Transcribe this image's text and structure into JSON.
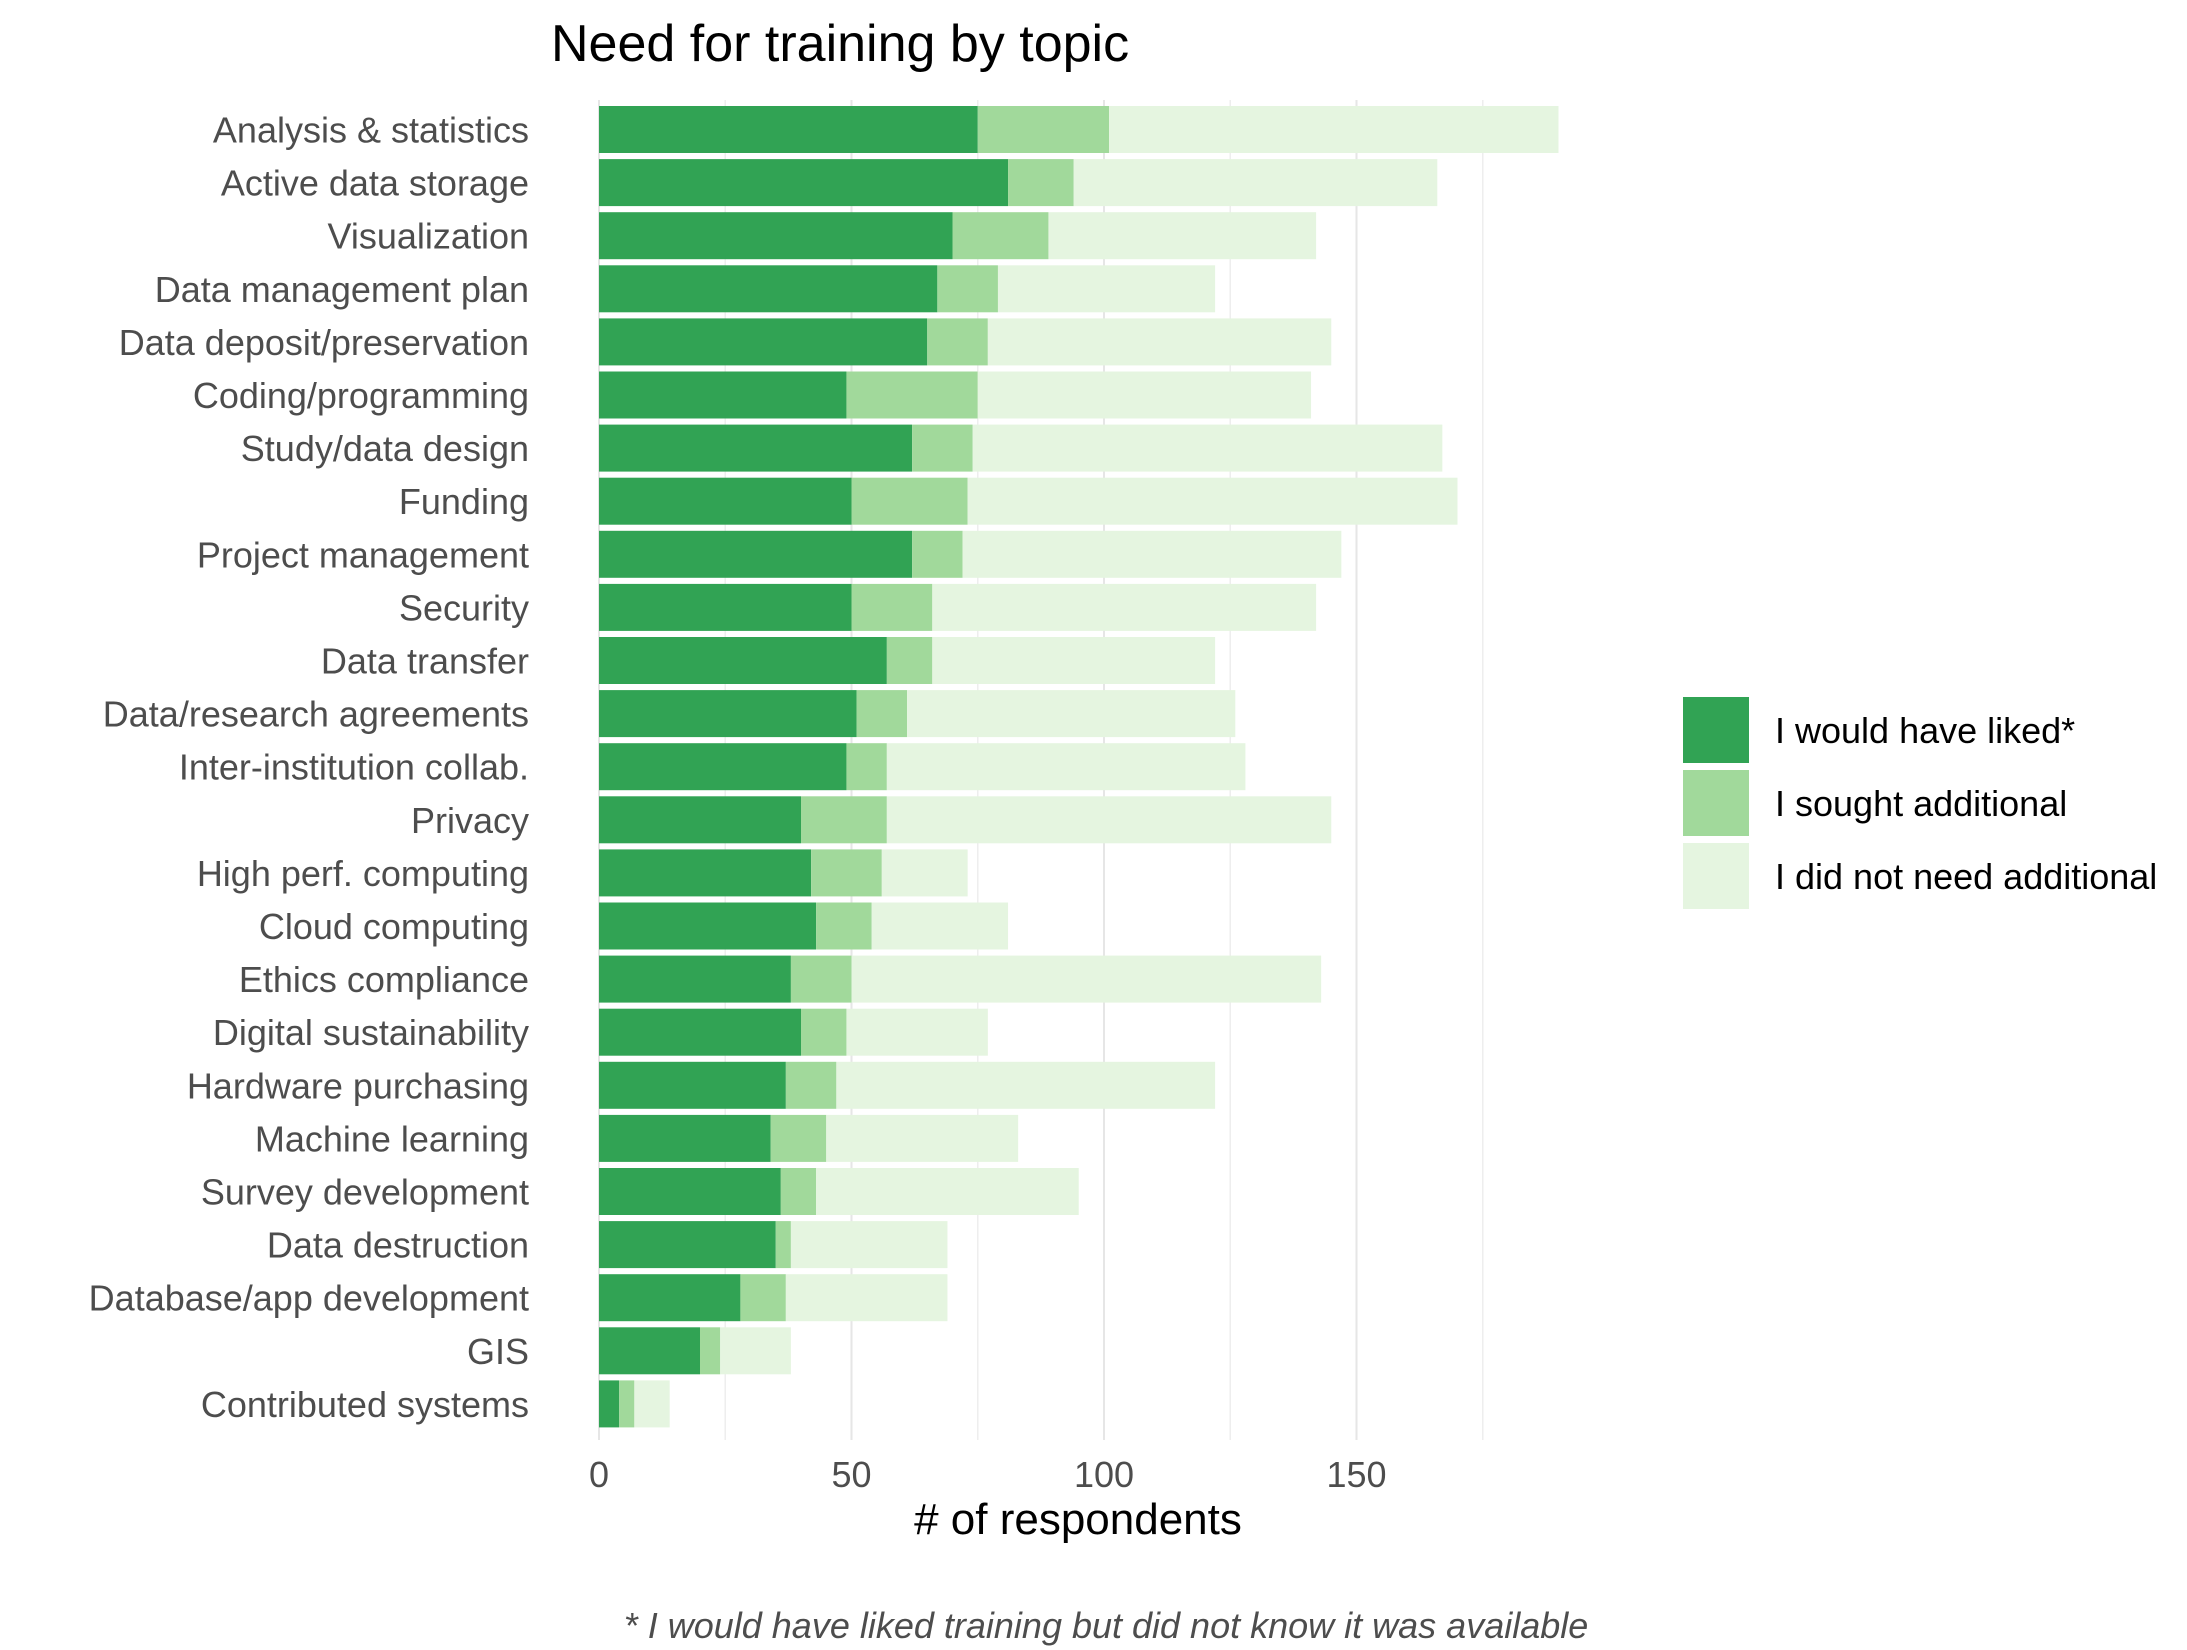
{
  "chart_data": {
    "type": "bar",
    "orientation": "horizontal",
    "stacked": true,
    "title": "Need for training by topic",
    "xlabel": "# of respondents",
    "ylabel": "",
    "caption": "* I would have liked training but did not know it was available",
    "xlim": [
      0,
      200
    ],
    "xticks": [
      0,
      50,
      100,
      150
    ],
    "grid": true,
    "legend_position": "right",
    "categories": [
      "Analysis & statistics",
      "Active data storage",
      "Visualization",
      "Data management plan",
      "Data deposit/preservation",
      "Coding/programming",
      "Study/data design",
      "Funding",
      "Project management",
      "Security",
      "Data transfer",
      "Data/research agreements",
      "Inter-institution collab.",
      "Privacy",
      "High perf. computing",
      "Cloud computing",
      "Ethics compliance",
      "Digital sustainability",
      "Hardware purchasing",
      "Machine learning",
      "Survey development",
      "Data destruction",
      "Database/app development",
      "GIS",
      "Contributed systems"
    ],
    "series": [
      {
        "name": "I would have liked*",
        "color": "#31a354",
        "values": [
          75,
          81,
          70,
          67,
          65,
          49,
          62,
          50,
          62,
          50,
          57,
          51,
          49,
          40,
          42,
          43,
          38,
          40,
          37,
          34,
          36,
          35,
          28,
          20,
          4
        ]
      },
      {
        "name": "I sought additional",
        "color": "#a1d99b",
        "values": [
          26,
          13,
          19,
          12,
          12,
          26,
          12,
          23,
          10,
          16,
          9,
          10,
          8,
          17,
          14,
          11,
          12,
          9,
          10,
          11,
          7,
          3,
          9,
          4,
          3
        ]
      },
      {
        "name": "I did not need additional",
        "color": "#e5f5e0",
        "values": [
          89,
          72,
          53,
          43,
          68,
          66,
          93,
          97,
          75,
          76,
          56,
          65,
          71,
          88,
          17,
          27,
          93,
          28,
          75,
          38,
          52,
          31,
          32,
          14,
          7
        ]
      }
    ]
  }
}
